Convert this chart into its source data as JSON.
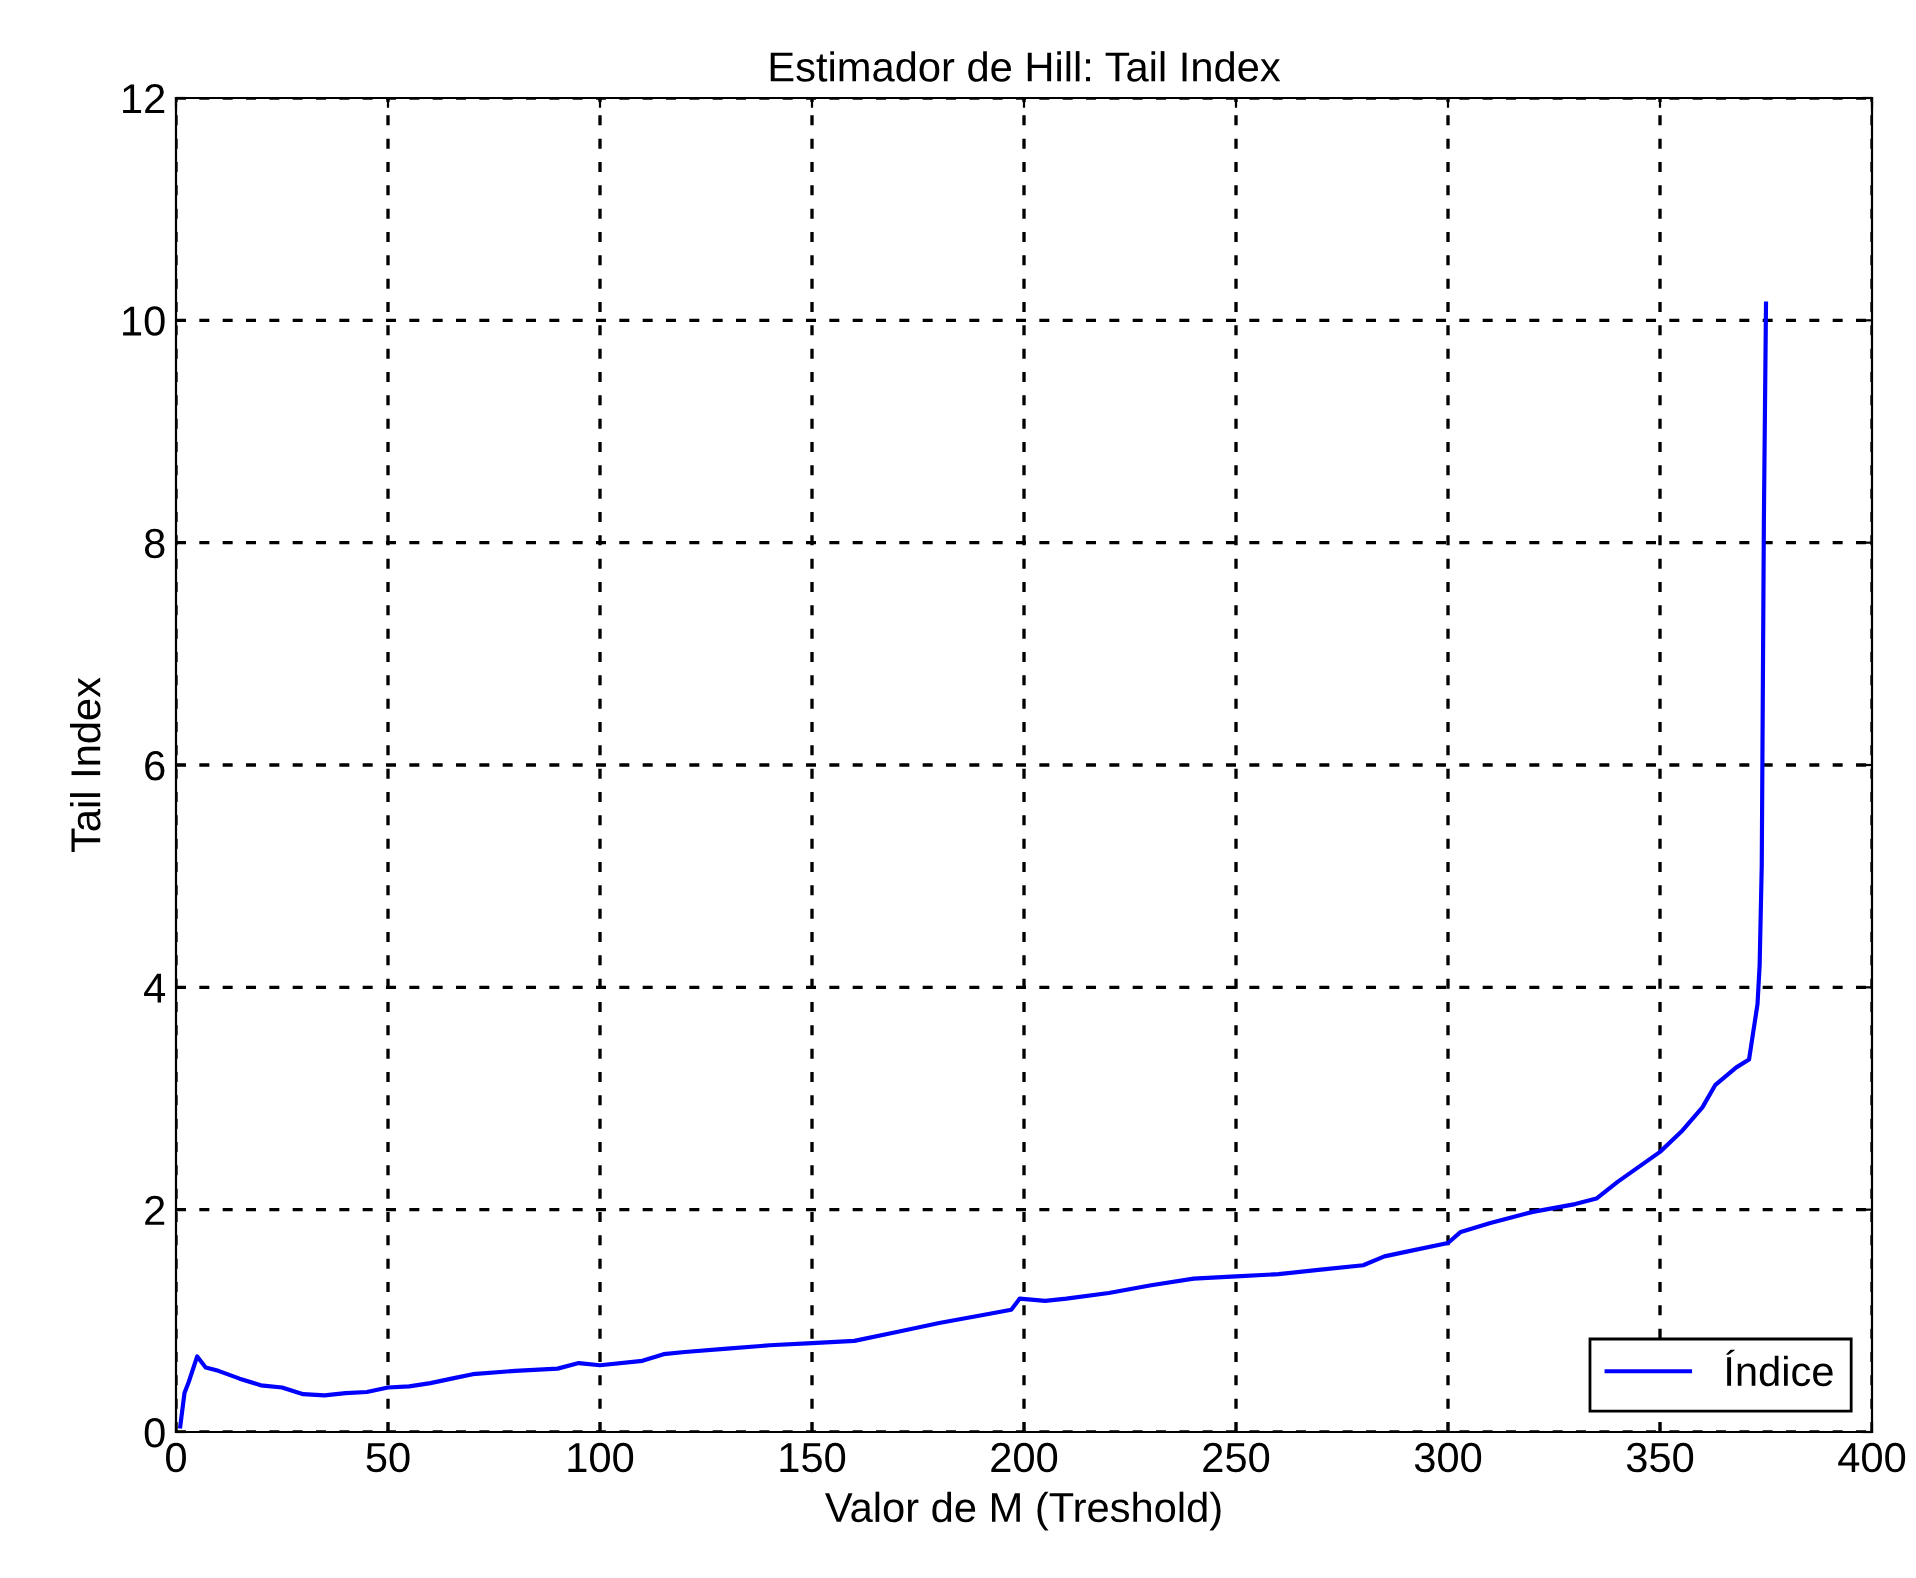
{
  "chart_data": {
    "type": "line",
    "title": "Estimador de Hill: Tail Index",
    "xlabel": "Valor de M (Treshold)",
    "ylabel": "Tail Index",
    "xlim": [
      0,
      400
    ],
    "xticks": [
      0,
      50,
      100,
      150,
      200,
      250,
      300,
      350,
      400
    ],
    "ylim": [
      0,
      12
    ],
    "yticks": [
      0,
      2,
      4,
      6,
      8,
      10,
      12
    ],
    "grid": true,
    "legend": "bottom right",
    "series": [
      {
        "name": "Índice",
        "color": "#0000ff",
        "x": [
          1,
          2,
          3,
          5,
          7,
          10,
          15,
          20,
          25,
          30,
          35,
          40,
          45,
          50,
          55,
          60,
          65,
          70,
          80,
          90,
          95,
          100,
          110,
          115,
          120,
          130,
          140,
          150,
          160,
          170,
          180,
          190,
          197,
          199,
          205,
          210,
          220,
          230,
          240,
          250,
          260,
          270,
          280,
          285,
          290,
          300,
          303,
          310,
          320,
          330,
          335,
          340,
          350,
          355,
          360,
          363,
          368,
          371,
          372,
          373,
          373.5,
          374,
          374.5,
          375
        ],
        "values": [
          0.05,
          0.35,
          0.45,
          0.68,
          0.58,
          0.55,
          0.48,
          0.42,
          0.4,
          0.34,
          0.33,
          0.35,
          0.36,
          0.4,
          0.41,
          0.44,
          0.48,
          0.52,
          0.55,
          0.57,
          0.62,
          0.6,
          0.64,
          0.7,
          0.72,
          0.75,
          0.78,
          0.8,
          0.82,
          0.9,
          0.98,
          1.05,
          1.1,
          1.2,
          1.18,
          1.2,
          1.25,
          1.32,
          1.38,
          1.4,
          1.42,
          1.46,
          1.5,
          1.58,
          1.62,
          1.7,
          1.8,
          1.88,
          1.98,
          2.05,
          2.1,
          2.25,
          2.52,
          2.7,
          2.92,
          3.12,
          3.28,
          3.35,
          3.6,
          3.85,
          4.2,
          5.1,
          8.2,
          10.15
        ]
      }
    ]
  }
}
